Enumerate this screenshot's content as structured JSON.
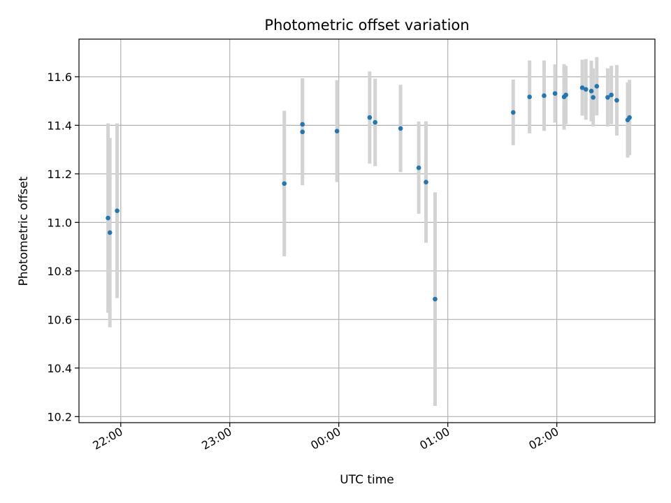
{
  "chart_data": {
    "type": "scatter",
    "title": "Photometric offset variation",
    "xlabel": "UTC time",
    "ylabel": "Photometric offset",
    "x_is_time": true,
    "grid": true,
    "legend": "none",
    "xlim": [
      "21:37",
      "02:54"
    ],
    "ylim": [
      10.175,
      11.755
    ],
    "xticks": [
      "22:00",
      "23:00",
      "00:00",
      "01:00",
      "02:00"
    ],
    "yticks": [
      "10.2",
      "10.4",
      "10.6",
      "10.8",
      "11.0",
      "11.2",
      "11.4",
      "11.6"
    ],
    "colors": {
      "points": "#1f77b4",
      "errorbars": "#d3d3d3",
      "grid": "#b0b0b0"
    },
    "series": [
      {
        "points": [
          {
            "t": "21:53",
            "y": 11.018,
            "err": 0.39
          },
          {
            "t": "21:54",
            "y": 10.958,
            "err": 0.39
          },
          {
            "t": "21:58",
            "y": 11.048,
            "err": 0.36
          },
          {
            "t": "23:30",
            "y": 11.16,
            "err": 0.3
          },
          {
            "t": "23:40",
            "y": 11.404,
            "err": 0.19
          },
          {
            "t": "23:40",
            "y": 11.373,
            "err": 0.22
          },
          {
            "t": "23:59",
            "y": 11.376,
            "err": 0.21
          },
          {
            "t": "00:17",
            "y": 11.432,
            "err": 0.19
          },
          {
            "t": "00:20",
            "y": 11.412,
            "err": 0.18
          },
          {
            "t": "00:34",
            "y": 11.387,
            "err": 0.18
          },
          {
            "t": "00:44",
            "y": 11.225,
            "err": 0.19
          },
          {
            "t": "00:48",
            "y": 11.166,
            "err": 0.25
          },
          {
            "t": "00:53",
            "y": 10.684,
            "err": 0.44
          },
          {
            "t": "01:36",
            "y": 11.453,
            "err": 0.135
          },
          {
            "t": "01:45",
            "y": 11.517,
            "err": 0.15
          },
          {
            "t": "01:53",
            "y": 11.522,
            "err": 0.145
          },
          {
            "t": "01:59",
            "y": 11.531,
            "err": 0.12
          },
          {
            "t": "02:04",
            "y": 11.517,
            "err": 0.135
          },
          {
            "t": "02:05",
            "y": 11.525,
            "err": 0.12
          },
          {
            "t": "02:14",
            "y": 11.555,
            "err": 0.115
          },
          {
            "t": "02:16",
            "y": 11.548,
            "err": 0.125
          },
          {
            "t": "02:19",
            "y": 11.541,
            "err": 0.125
          },
          {
            "t": "02:20",
            "y": 11.515,
            "err": 0.12
          },
          {
            "t": "02:22",
            "y": 11.561,
            "err": 0.12
          },
          {
            "t": "02:28",
            "y": 11.515,
            "err": 0.12
          },
          {
            "t": "02:30",
            "y": 11.525,
            "err": 0.12
          },
          {
            "t": "02:33",
            "y": 11.503,
            "err": 0.145
          },
          {
            "t": "02:39",
            "y": 11.422,
            "err": 0.155
          },
          {
            "t": "02:40",
            "y": 11.432,
            "err": 0.155
          }
        ]
      }
    ]
  }
}
